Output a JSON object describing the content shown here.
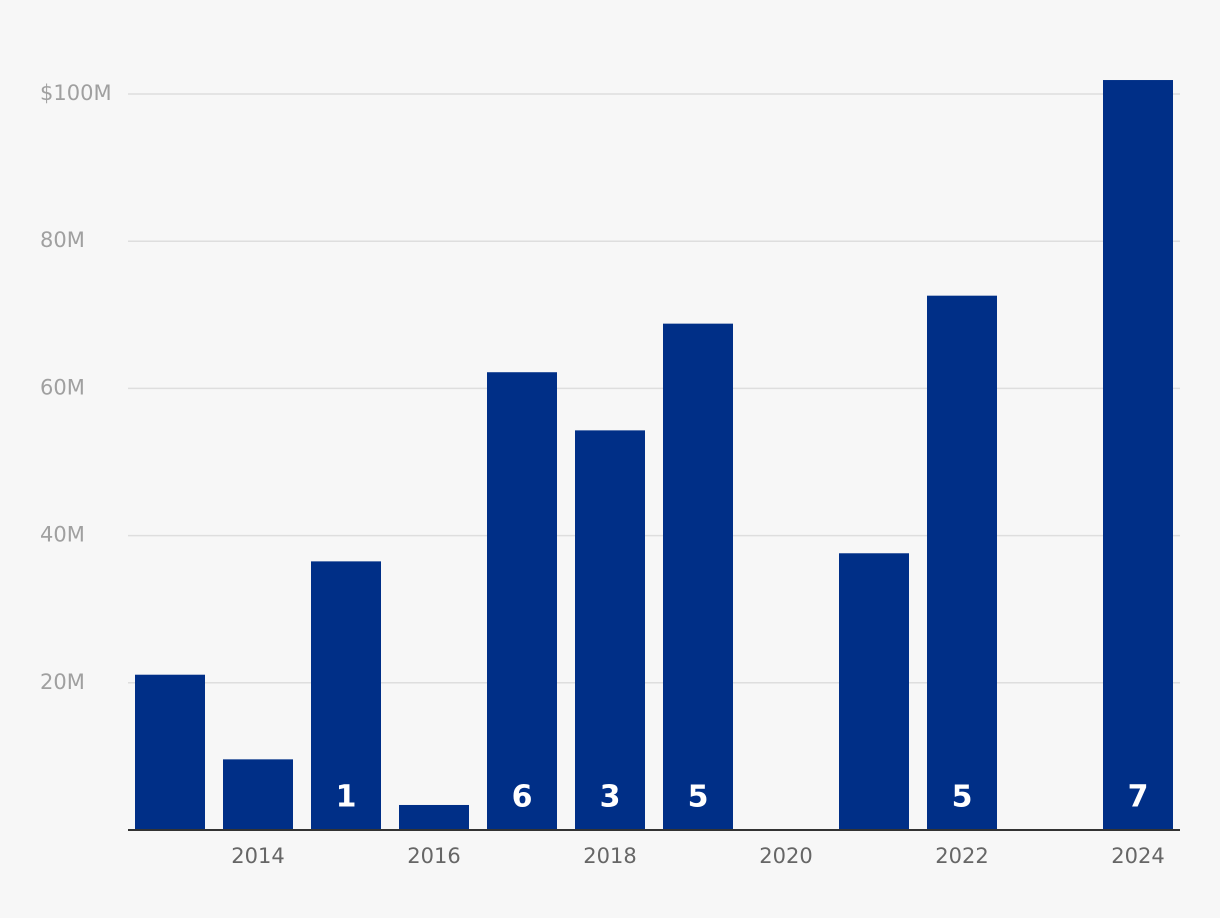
{
  "chart_data": {
    "type": "bar",
    "categories": [
      null,
      "2014",
      null,
      "2016",
      null,
      "2018",
      null,
      "2020",
      null,
      "2022",
      null,
      "2024"
    ],
    "values": [
      21.1,
      9.6,
      36.5,
      3.4,
      62.2,
      54.3,
      68.8,
      null,
      37.6,
      72.6,
      null,
      101.9
    ],
    "bar_labels": [
      null,
      null,
      1,
      null,
      6,
      3,
      5,
      null,
      null,
      5,
      null,
      7
    ],
    "color": "#002f87",
    "ylim": [
      0,
      102
    ],
    "yticks": [
      {
        "value": 20,
        "label": "20M"
      },
      {
        "value": 40,
        "label": "40M"
      },
      {
        "value": 60,
        "label": "60M"
      },
      {
        "value": 80,
        "label": "80M"
      },
      {
        "value": 100,
        "label": "$100M"
      }
    ],
    "grid": true
  }
}
